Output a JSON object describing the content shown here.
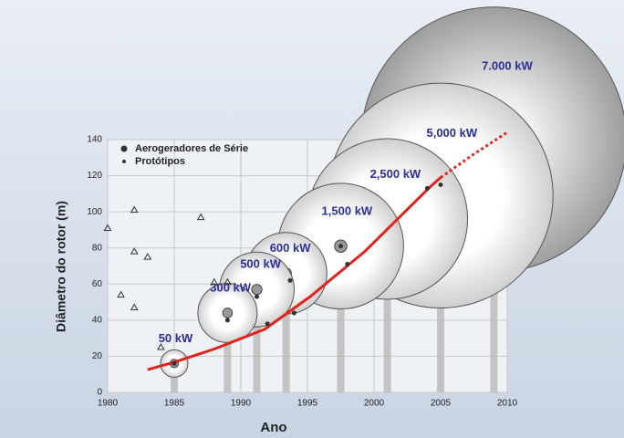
{
  "chart_data": {
    "type": "bubble",
    "x_label": "Ano",
    "y_label": "Diâmetro do rotor (m)",
    "xlim": [
      1980,
      2010
    ],
    "xticks": [
      1980,
      1985,
      1990,
      1995,
      2000,
      2005,
      2010
    ],
    "ylim": [
      0,
      140
    ],
    "yticks": [
      0,
      20,
      40,
      60,
      80,
      100,
      120,
      140
    ],
    "grid": true,
    "bubbles": {
      "x": [
        1985,
        1989,
        1991.2,
        1993.4,
        1997.5,
        2001,
        2005,
        2009
      ],
      "y": [
        16,
        44,
        57,
        66,
        81,
        96,
        109,
        140
      ],
      "sizes": [
        50,
        300,
        500,
        600,
        1500,
        2500,
        5000,
        7000
      ],
      "value_labels": [
        "50 kW",
        "300 kW",
        "500 kW",
        "600 kW",
        "1,500 kW",
        "2,500 kW",
        "5,000 kW",
        "7.000 kW"
      ],
      "color": "#2a2f9a"
    },
    "series": [
      {
        "name": "Aerogeradores de Série",
        "marker": "circle",
        "color": "#333333",
        "x": [
          1985,
          1989,
          1991.2,
          1993.7,
          1997.5,
          2005,
          1992,
          1994,
          1998,
          2004
        ],
        "values": [
          16,
          40,
          53,
          62,
          81,
          115,
          38,
          44,
          71,
          113
        ]
      },
      {
        "name": "Protótipos",
        "marker": "triangle",
        "color": "#333333",
        "x": [
          1980,
          1981,
          1982,
          1982,
          1983,
          1982,
          1984,
          1987,
          1988,
          1989
        ],
        "values": [
          91,
          54,
          101,
          78,
          75,
          47,
          25,
          97,
          61,
          61
        ]
      }
    ],
    "trend": [
      {
        "color": "#e0231b",
        "dash": false,
        "x": [
          1983,
          1985,
          1988,
          1991.8,
          1995.2,
          1999.3,
          2004.1,
          2005
        ],
        "values": [
          12.6,
          16.7,
          24,
          35,
          53,
          78,
          113,
          119
        ]
      },
      {
        "color": "#e0231b",
        "dash": true,
        "x": [
          2005,
          2007.5,
          2010
        ],
        "values": [
          119,
          132,
          144
        ]
      }
    ]
  }
}
